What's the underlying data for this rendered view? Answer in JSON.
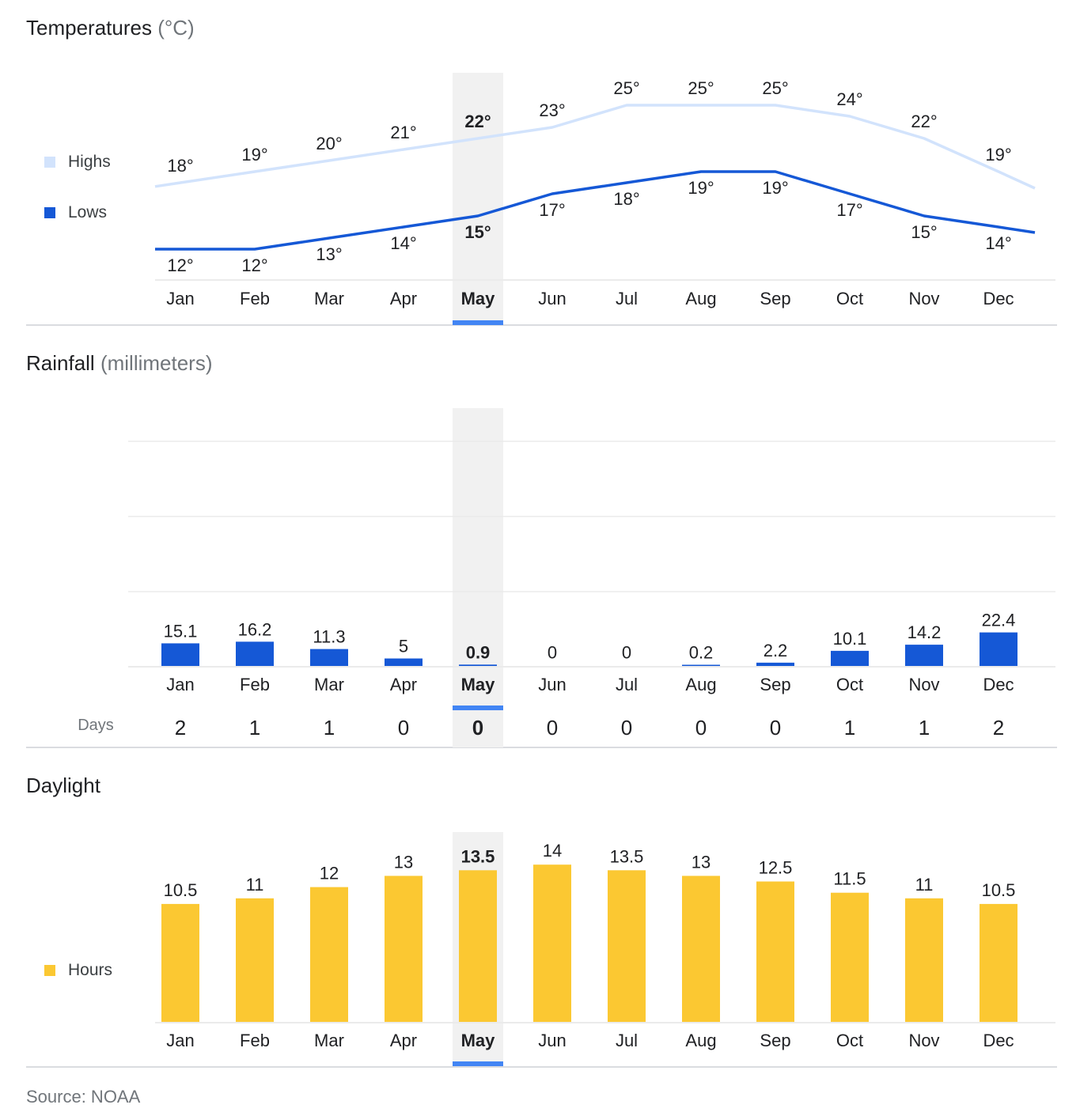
{
  "months": [
    "Jan",
    "Feb",
    "Mar",
    "Apr",
    "May",
    "Jun",
    "Jul",
    "Aug",
    "Sep",
    "Oct",
    "Nov",
    "Dec"
  ],
  "selected_month": "May",
  "colors": {
    "highs": "#d2e3fc",
    "lows": "#1558d6",
    "rain": "#1558d6",
    "daylight": "#fbc832",
    "selected_band": "#f1f1f1",
    "selected_tab": "#4285f4"
  },
  "temperature": {
    "title": "Temperatures",
    "unit": "(°C)",
    "legend_highs": "Highs",
    "legend_lows": "Lows"
  },
  "rainfall": {
    "title": "Rainfall",
    "unit": "(millimeters)",
    "days_label": "Days"
  },
  "daylight": {
    "title": "Daylight",
    "legend_hours": "Hours"
  },
  "source": "Source: NOAA",
  "chart_data": [
    {
      "type": "line",
      "title": "Temperatures (°C)",
      "categories": [
        "Jan",
        "Feb",
        "Mar",
        "Apr",
        "May",
        "Jun",
        "Jul",
        "Aug",
        "Sep",
        "Oct",
        "Nov",
        "Dec"
      ],
      "series": [
        {
          "name": "Highs",
          "values": [
            18,
            19,
            20,
            21,
            22,
            23,
            25,
            25,
            25,
            24,
            22,
            19
          ]
        },
        {
          "name": "Lows",
          "values": [
            12,
            12,
            13,
            14,
            15,
            17,
            18,
            19,
            19,
            17,
            15,
            14
          ]
        }
      ],
      "labels_suffix": "°",
      "legend": "left"
    },
    {
      "type": "bar",
      "title": "Rainfall (millimeters)",
      "categories": [
        "Jan",
        "Feb",
        "Mar",
        "Apr",
        "May",
        "Jun",
        "Jul",
        "Aug",
        "Sep",
        "Oct",
        "Nov",
        "Dec"
      ],
      "values": [
        15.1,
        16.2,
        11.3,
        5,
        0.9,
        0,
        0,
        0.2,
        2.2,
        10.1,
        14.2,
        22.4
      ],
      "value_labels": [
        "15.1",
        "16.2",
        "11.3",
        "5",
        "0.9",
        "0",
        "0",
        "0.2",
        "2.2",
        "10.1",
        "14.2",
        "22.4"
      ],
      "ylim": [
        0,
        150
      ],
      "grid": true,
      "days": [
        2,
        1,
        1,
        0,
        0,
        0,
        0,
        0,
        0,
        1,
        1,
        2
      ]
    },
    {
      "type": "bar",
      "title": "Daylight",
      "categories": [
        "Jan",
        "Feb",
        "Mar",
        "Apr",
        "May",
        "Jun",
        "Jul",
        "Aug",
        "Sep",
        "Oct",
        "Nov",
        "Dec"
      ],
      "series": [
        {
          "name": "Hours",
          "values": [
            10.5,
            11,
            12,
            13,
            13.5,
            14,
            13.5,
            13,
            12.5,
            11.5,
            11,
            10.5
          ]
        }
      ],
      "value_labels": [
        "10.5",
        "11",
        "12",
        "13",
        "13.5",
        "14",
        "13.5",
        "13",
        "12.5",
        "11.5",
        "11",
        "10.5"
      ],
      "legend": "left"
    }
  ]
}
